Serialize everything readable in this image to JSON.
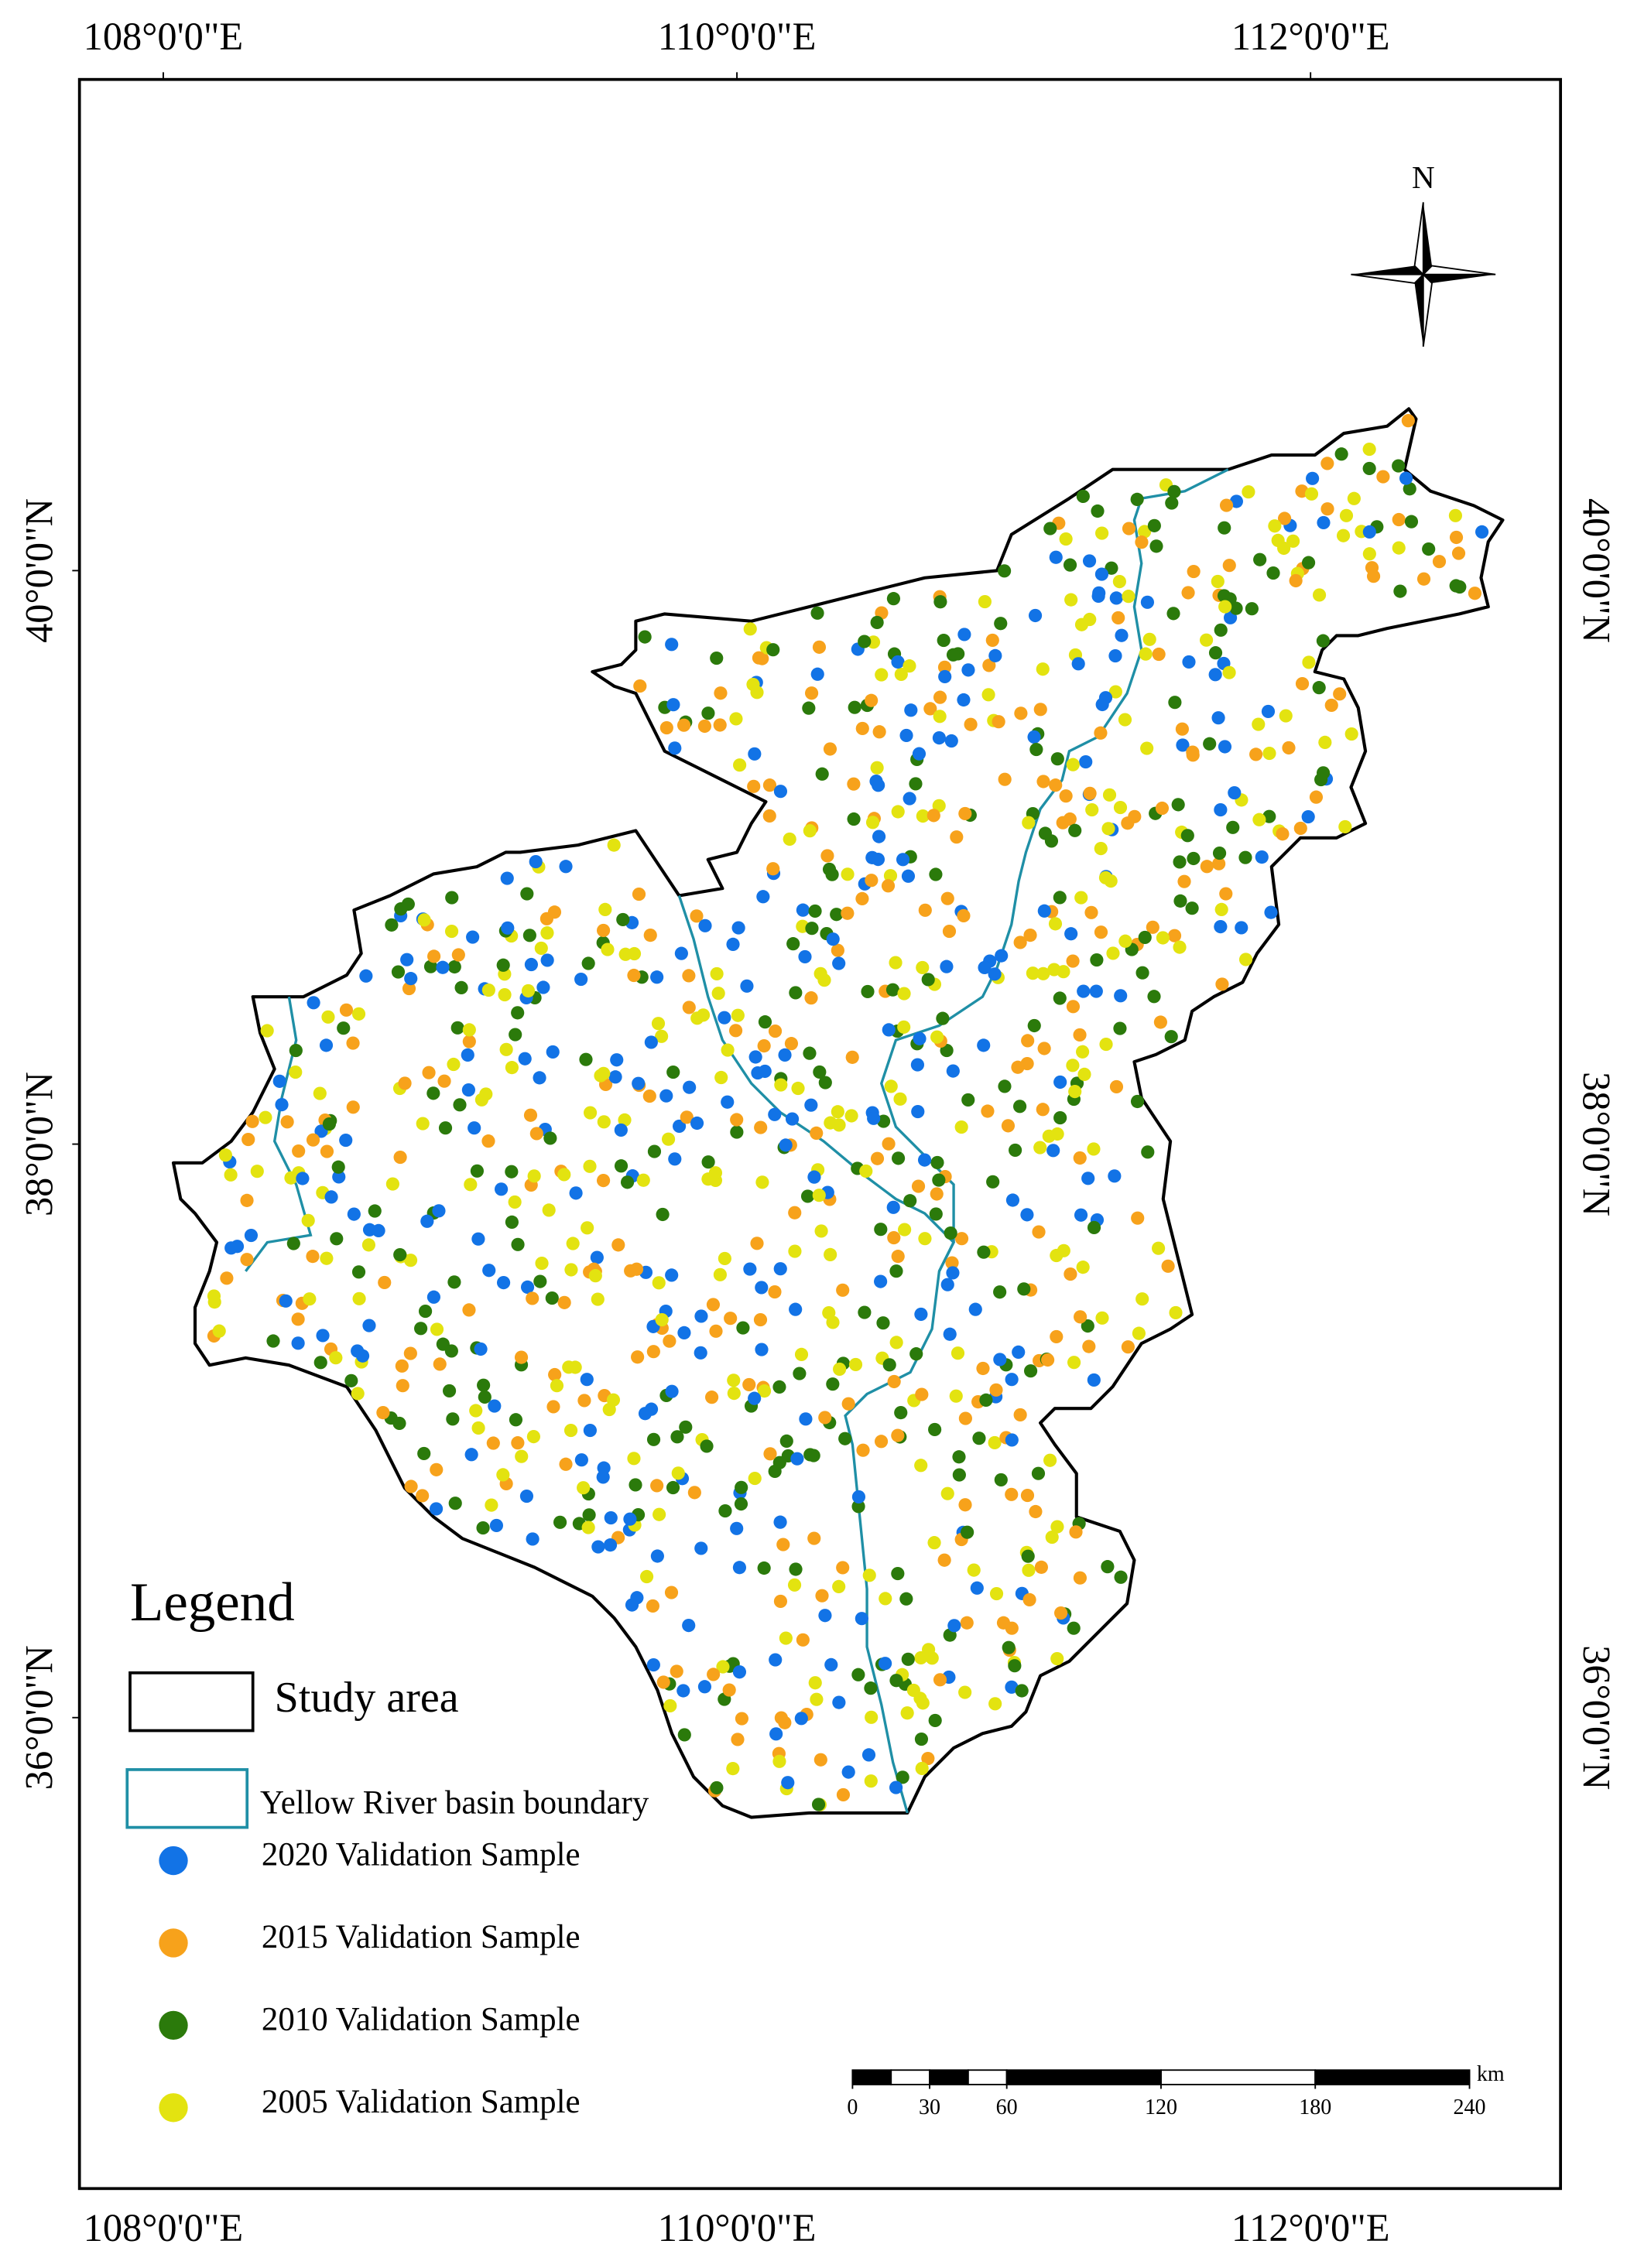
{
  "graticule": {
    "longitudes": [
      {
        "value": 108,
        "label": "108°0'0\"E"
      },
      {
        "value": 110,
        "label": "110°0'0\"E"
      },
      {
        "value": 112,
        "label": "112°0'0\"E"
      }
    ],
    "latitudes": [
      {
        "value": 40,
        "label": "40°0'0\"N"
      },
      {
        "value": 38,
        "label": "38°0'0\"N"
      },
      {
        "value": 36,
        "label": "36°0'0\"N"
      }
    ]
  },
  "north_arrow": {
    "label": "N"
  },
  "legend": {
    "title": "Legend",
    "items": [
      {
        "label": "Study area",
        "color": "#000000"
      },
      {
        "label": "Yellow River basin boundary",
        "color": "#1f8fa6"
      },
      {
        "label": "2020 Validation Sample",
        "color": "#1273e6"
      },
      {
        "label": "2015 Validation Sample",
        "color": "#f7a21b"
      },
      {
        "label": "2010 Validation Sample",
        "color": "#2b7a0b"
      },
      {
        "label": "2005 Validation Sample",
        "color": "#e3e310"
      }
    ]
  },
  "scale_bar": {
    "unit": "km",
    "ticks": [
      0,
      30,
      60,
      120,
      180,
      240
    ]
  }
}
